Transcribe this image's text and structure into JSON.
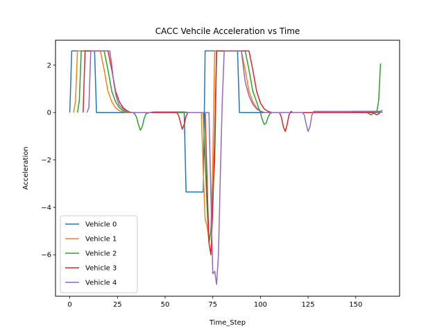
{
  "chart_data": {
    "type": "line",
    "title": "CACC Vehcile Acceleration vs Time",
    "xlabel": "Time_Step",
    "ylabel": "Acceleration",
    "xlim": [
      -7.5,
      173
    ],
    "ylim": [
      -7.75,
      3.05
    ],
    "xticks": [
      0,
      25,
      50,
      75,
      100,
      125,
      150
    ],
    "yticks": [
      -6,
      -4,
      -2,
      0,
      2
    ],
    "ytick_labels": [
      "−6",
      "−4",
      "−2",
      "0",
      "2"
    ],
    "grid": false,
    "legend_position": "lower-left",
    "series": [
      {
        "name": "Vehicle 0",
        "color": "#1f77b4",
        "points": [
          [
            0,
            0
          ],
          [
            1,
            2.6
          ],
          [
            13,
            2.6
          ],
          [
            14,
            0
          ],
          [
            60,
            0
          ],
          [
            61,
            -3.35
          ],
          [
            70,
            -3.35
          ],
          [
            71,
            2.6
          ],
          [
            88,
            2.6
          ],
          [
            89,
            0
          ],
          [
            148,
            0
          ],
          [
            149,
            0.05
          ],
          [
            163,
            0.05
          ],
          [
            164,
            0
          ]
        ]
      },
      {
        "name": "Vehicle 1",
        "color": "#ff7f0e",
        "points": [
          [
            2,
            0
          ],
          [
            3,
            0.5
          ],
          [
            4,
            2.6
          ],
          [
            16,
            2.6
          ],
          [
            18,
            1.8
          ],
          [
            20,
            0.9
          ],
          [
            22,
            0.45
          ],
          [
            24,
            0.2
          ],
          [
            26,
            0.08
          ],
          [
            28,
            0.03
          ],
          [
            30,
            0
          ],
          [
            69,
            0
          ],
          [
            70,
            -2.5
          ],
          [
            71,
            -4.5
          ],
          [
            72,
            -4.8
          ],
          [
            73,
            -5.4
          ],
          [
            74,
            -5.0
          ],
          [
            75,
            -2.0
          ],
          [
            76,
            2.6
          ],
          [
            90,
            2.6
          ],
          [
            92,
            1.8
          ],
          [
            94,
            0.9
          ],
          [
            96,
            0.45
          ],
          [
            98,
            0.2
          ],
          [
            100,
            0.07
          ],
          [
            102,
            0
          ],
          [
            160,
            0
          ],
          [
            162,
            0.03
          ],
          [
            163,
            0
          ]
        ]
      },
      {
        "name": "Vehicle 2",
        "color": "#2ca02c",
        "points": [
          [
            4,
            0
          ],
          [
            5,
            0.5
          ],
          [
            6,
            2.6
          ],
          [
            18,
            2.6
          ],
          [
            20,
            1.8
          ],
          [
            22,
            0.9
          ],
          [
            24,
            0.45
          ],
          [
            26,
            0.2
          ],
          [
            28,
            0.08
          ],
          [
            30,
            0.03
          ],
          [
            33,
            0
          ],
          [
            34,
            -0.05
          ],
          [
            35,
            -0.2
          ],
          [
            36,
            -0.5
          ],
          [
            37,
            -0.75
          ],
          [
            38,
            -0.6
          ],
          [
            39,
            -0.25
          ],
          [
            40,
            -0.05
          ],
          [
            42,
            0
          ],
          [
            70,
            0
          ],
          [
            71,
            -2.0
          ],
          [
            72,
            -4.0
          ],
          [
            73,
            -5.5
          ],
          [
            74,
            -5.0
          ],
          [
            76,
            -2.0
          ],
          [
            77,
            2.6
          ],
          [
            92,
            2.6
          ],
          [
            94,
            1.8
          ],
          [
            96,
            0.9
          ],
          [
            98,
            0.45
          ],
          [
            99,
            0.2
          ],
          [
            100,
            0
          ],
          [
            101,
            -0.3
          ],
          [
            102,
            -0.5
          ],
          [
            103,
            -0.45
          ],
          [
            104,
            -0.2
          ],
          [
            105,
            -0.05
          ],
          [
            106,
            0
          ],
          [
            156,
            0
          ],
          [
            157,
            -0.05
          ],
          [
            158,
            -0.1
          ],
          [
            159,
            -0.05
          ],
          [
            160,
            0
          ],
          [
            161,
            0
          ],
          [
            162,
            0.5
          ],
          [
            163,
            2.07
          ]
        ]
      },
      {
        "name": "Vehicle 3",
        "color": "#d62728",
        "points": [
          [
            7,
            0
          ],
          [
            8,
            2.6
          ],
          [
            20,
            2.6
          ],
          [
            22,
            1.8
          ],
          [
            24,
            0.9
          ],
          [
            26,
            0.45
          ],
          [
            28,
            0.2
          ],
          [
            30,
            0.08
          ],
          [
            32,
            0
          ],
          [
            56,
            0
          ],
          [
            57,
            -0.1
          ],
          [
            58,
            -0.4
          ],
          [
            59,
            -0.7
          ],
          [
            60,
            -0.5
          ],
          [
            61,
            -0.15
          ],
          [
            62,
            0
          ],
          [
            71,
            0
          ],
          [
            72,
            -3.0
          ],
          [
            73,
            -5.5
          ],
          [
            74,
            -6.0
          ],
          [
            75,
            -4.0
          ],
          [
            76,
            -1.0
          ],
          [
            77,
            2.6
          ],
          [
            94,
            2.6
          ],
          [
            96,
            1.8
          ],
          [
            98,
            0.9
          ],
          [
            100,
            0.4
          ],
          [
            102,
            0.15
          ],
          [
            104,
            0.05
          ],
          [
            106,
            0
          ],
          [
            110,
            0
          ],
          [
            111,
            -0.2
          ],
          [
            112,
            -0.6
          ],
          [
            113,
            -0.8
          ],
          [
            114,
            -0.5
          ],
          [
            115,
            -0.1
          ],
          [
            116,
            0.05
          ],
          [
            117,
            0
          ],
          [
            159,
            0
          ],
          [
            160,
            -0.05
          ],
          [
            161,
            -0.1
          ],
          [
            162,
            -0.05
          ],
          [
            163,
            0
          ]
        ]
      },
      {
        "name": "Vehicle 4",
        "color": "#9467bd",
        "points": [
          [
            9,
            0
          ],
          [
            10,
            0.2
          ],
          [
            11,
            2.6
          ],
          [
            20,
            2.6
          ],
          [
            21,
            2.6
          ],
          [
            22,
            2.0
          ],
          [
            23,
            1.3
          ],
          [
            24,
            0.8
          ],
          [
            25,
            0.5
          ],
          [
            26,
            0.3
          ],
          [
            28,
            0.15
          ],
          [
            30,
            0.05
          ],
          [
            32,
            0
          ],
          [
            42,
            0
          ],
          [
            44,
            0.03
          ],
          [
            60,
            0.03
          ],
          [
            62,
            0
          ],
          [
            73,
            0
          ],
          [
            74,
            -3.5
          ],
          [
            75,
            -6.8
          ],
          [
            76,
            -6.7
          ],
          [
            77,
            -7.25
          ],
          [
            78,
            -6.0
          ],
          [
            79,
            -2.5
          ],
          [
            80,
            0.5
          ],
          [
            81,
            2.6
          ],
          [
            89,
            2.6
          ],
          [
            90,
            2.6
          ],
          [
            92,
            1.3
          ],
          [
            94,
            0.7
          ],
          [
            96,
            0.35
          ],
          [
            98,
            0.15
          ],
          [
            100,
            0.05
          ],
          [
            102,
            0
          ],
          [
            122,
            0
          ],
          [
            123,
            -0.1
          ],
          [
            124,
            -0.5
          ],
          [
            125,
            -0.8
          ],
          [
            126,
            -0.6
          ],
          [
            127,
            -0.1
          ],
          [
            128,
            0.05
          ],
          [
            130,
            0.05
          ],
          [
            160,
            0.05
          ],
          [
            161,
            0
          ],
          [
            162,
            0
          ],
          [
            163,
            0.05
          ],
          [
            164,
            0.1
          ]
        ]
      }
    ]
  }
}
